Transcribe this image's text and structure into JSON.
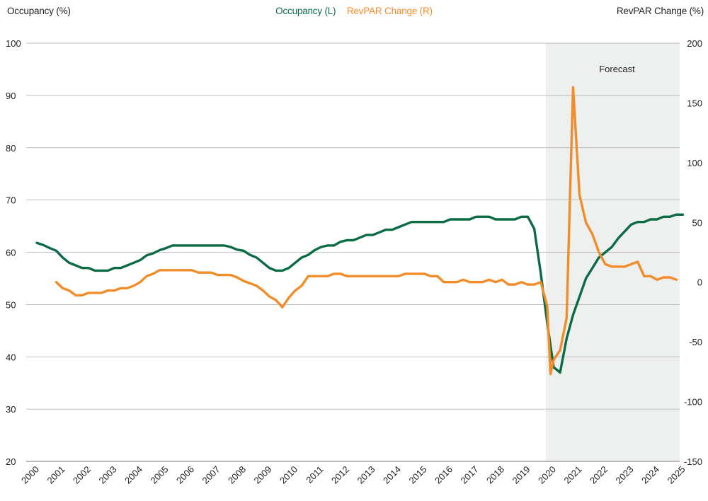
{
  "colors": {
    "occupancy": "#0b6b45",
    "revpar": "#f28c28",
    "forecast_band": "#eef0f0",
    "grid": "#aaaaaa"
  },
  "chart_data": {
    "type": "line",
    "left_axis_label": "Occupancy (%)",
    "right_axis_label": "RevPAR Change (%)",
    "legend": [
      "Occupancy (L)",
      "RevPAR Change (R)"
    ],
    "legend_position": "top-center",
    "annotation": "Forecast",
    "forecast_range": [
      2019.67,
      2025.25
    ],
    "x_ticks": [
      "2000",
      "2001",
      "2002",
      "2003",
      "2004",
      "2005",
      "2006",
      "2007",
      "2008",
      "2009",
      "2010",
      "2011",
      "2012",
      "2013",
      "2014",
      "2015",
      "2016",
      "2017",
      "2018",
      "2019",
      "2020",
      "2021",
      "2022",
      "2023",
      "2024",
      "2025"
    ],
    "left_ylim": [
      20,
      100
    ],
    "left_yticks": [
      "20",
      "30",
      "40",
      "50",
      "60",
      "70",
      "80",
      "90",
      "100"
    ],
    "right_ylim": [
      -150,
      200
    ],
    "right_yticks": [
      "-150",
      "-100",
      "-50",
      "0",
      "50",
      "100",
      "150",
      "200"
    ],
    "grid": true,
    "series": [
      {
        "name": "Occupancy (L)",
        "axis": "left",
        "points": [
          [
            2000.0,
            61.8
          ],
          [
            2000.25,
            61.4
          ],
          [
            2000.5,
            60.8
          ],
          [
            2000.75,
            60.3
          ],
          [
            2001.0,
            59.0
          ],
          [
            2001.25,
            58.0
          ],
          [
            2001.5,
            57.5
          ],
          [
            2001.75,
            57.0
          ],
          [
            2002.0,
            57.0
          ],
          [
            2002.25,
            56.5
          ],
          [
            2002.5,
            56.5
          ],
          [
            2002.75,
            56.5
          ],
          [
            2003.0,
            57.0
          ],
          [
            2003.25,
            57.0
          ],
          [
            2003.5,
            57.5
          ],
          [
            2003.75,
            58.0
          ],
          [
            2004.0,
            58.5
          ],
          [
            2004.25,
            59.4
          ],
          [
            2004.5,
            59.8
          ],
          [
            2004.75,
            60.4
          ],
          [
            2005.0,
            60.8
          ],
          [
            2005.25,
            61.3
          ],
          [
            2005.5,
            61.3
          ],
          [
            2005.75,
            61.3
          ],
          [
            2006.0,
            61.3
          ],
          [
            2006.25,
            61.3
          ],
          [
            2006.5,
            61.3
          ],
          [
            2006.75,
            61.3
          ],
          [
            2007.0,
            61.3
          ],
          [
            2007.25,
            61.3
          ],
          [
            2007.5,
            61.0
          ],
          [
            2007.75,
            60.5
          ],
          [
            2008.0,
            60.3
          ],
          [
            2008.25,
            59.5
          ],
          [
            2008.5,
            59.0
          ],
          [
            2008.75,
            58.0
          ],
          [
            2009.0,
            57.0
          ],
          [
            2009.25,
            56.5
          ],
          [
            2009.5,
            56.5
          ],
          [
            2009.75,
            57.0
          ],
          [
            2010.0,
            58.0
          ],
          [
            2010.25,
            59.0
          ],
          [
            2010.5,
            59.5
          ],
          [
            2010.75,
            60.4
          ],
          [
            2011.0,
            61.0
          ],
          [
            2011.25,
            61.3
          ],
          [
            2011.5,
            61.3
          ],
          [
            2011.75,
            62.0
          ],
          [
            2012.0,
            62.3
          ],
          [
            2012.25,
            62.3
          ],
          [
            2012.5,
            62.8
          ],
          [
            2012.75,
            63.3
          ],
          [
            2013.0,
            63.3
          ],
          [
            2013.25,
            63.8
          ],
          [
            2013.5,
            64.3
          ],
          [
            2013.75,
            64.3
          ],
          [
            2014.0,
            64.8
          ],
          [
            2014.25,
            65.3
          ],
          [
            2014.5,
            65.8
          ],
          [
            2014.75,
            65.8
          ],
          [
            2015.0,
            65.8
          ],
          [
            2015.25,
            65.8
          ],
          [
            2015.5,
            65.8
          ],
          [
            2015.75,
            65.8
          ],
          [
            2016.0,
            66.3
          ],
          [
            2016.25,
            66.3
          ],
          [
            2016.5,
            66.3
          ],
          [
            2016.75,
            66.3
          ],
          [
            2017.0,
            66.8
          ],
          [
            2017.25,
            66.8
          ],
          [
            2017.5,
            66.8
          ],
          [
            2017.75,
            66.3
          ],
          [
            2018.0,
            66.3
          ],
          [
            2018.25,
            66.3
          ],
          [
            2018.5,
            66.3
          ],
          [
            2018.75,
            66.8
          ],
          [
            2019.0,
            66.8
          ],
          [
            2019.25,
            64.5
          ],
          [
            2019.5,
            56.0
          ],
          [
            2019.75,
            46.5
          ],
          [
            2020.0,
            38.0
          ],
          [
            2020.25,
            37.0
          ],
          [
            2020.5,
            43.5
          ],
          [
            2020.75,
            48.0
          ],
          [
            2021.0,
            51.5
          ],
          [
            2021.25,
            55.0
          ],
          [
            2021.5,
            57.0
          ],
          [
            2021.75,
            59.0
          ],
          [
            2022.0,
            60.0
          ],
          [
            2022.25,
            61.0
          ],
          [
            2022.5,
            62.7
          ],
          [
            2022.75,
            64.0
          ],
          [
            2023.0,
            65.3
          ],
          [
            2023.25,
            65.8
          ],
          [
            2023.5,
            65.8
          ],
          [
            2023.75,
            66.3
          ],
          [
            2024.0,
            66.3
          ],
          [
            2024.25,
            66.8
          ],
          [
            2024.5,
            66.8
          ],
          [
            2024.75,
            67.2
          ],
          [
            2025.0,
            67.2
          ]
        ]
      },
      {
        "name": "RevPAR Change (R)",
        "axis": "right",
        "points": [
          [
            2000.75,
            0
          ],
          [
            2001.0,
            -5
          ],
          [
            2001.25,
            -7
          ],
          [
            2001.5,
            -11
          ],
          [
            2001.75,
            -11
          ],
          [
            2002.0,
            -9
          ],
          [
            2002.25,
            -9
          ],
          [
            2002.5,
            -9
          ],
          [
            2002.75,
            -7
          ],
          [
            2003.0,
            -7
          ],
          [
            2003.25,
            -5
          ],
          [
            2003.5,
            -5
          ],
          [
            2003.75,
            -3
          ],
          [
            2004.0,
            0
          ],
          [
            2004.25,
            5
          ],
          [
            2004.5,
            7
          ],
          [
            2004.75,
            10
          ],
          [
            2005.0,
            10
          ],
          [
            2005.25,
            10
          ],
          [
            2005.5,
            10
          ],
          [
            2005.75,
            10
          ],
          [
            2006.0,
            10
          ],
          [
            2006.25,
            8
          ],
          [
            2006.5,
            8
          ],
          [
            2006.75,
            8
          ],
          [
            2007.0,
            6
          ],
          [
            2007.25,
            6
          ],
          [
            2007.5,
            6
          ],
          [
            2007.75,
            4
          ],
          [
            2008.0,
            1
          ],
          [
            2008.25,
            -1
          ],
          [
            2008.5,
            -3
          ],
          [
            2008.75,
            -7
          ],
          [
            2009.0,
            -12
          ],
          [
            2009.25,
            -15
          ],
          [
            2009.5,
            -21
          ],
          [
            2009.75,
            -13
          ],
          [
            2010.0,
            -7
          ],
          [
            2010.25,
            -3
          ],
          [
            2010.5,
            5
          ],
          [
            2010.75,
            5
          ],
          [
            2011.0,
            5
          ],
          [
            2011.25,
            5
          ],
          [
            2011.5,
            7
          ],
          [
            2011.75,
            7
          ],
          [
            2012.0,
            5
          ],
          [
            2012.25,
            5
          ],
          [
            2012.5,
            5
          ],
          [
            2012.75,
            5
          ],
          [
            2013.0,
            5
          ],
          [
            2013.25,
            5
          ],
          [
            2013.5,
            5
          ],
          [
            2013.75,
            5
          ],
          [
            2014.0,
            5
          ],
          [
            2014.25,
            7
          ],
          [
            2014.5,
            7
          ],
          [
            2014.75,
            7
          ],
          [
            2015.0,
            7
          ],
          [
            2015.25,
            5
          ],
          [
            2015.5,
            5
          ],
          [
            2015.75,
            0
          ],
          [
            2016.0,
            0
          ],
          [
            2016.25,
            0
          ],
          [
            2016.5,
            2
          ],
          [
            2016.75,
            0
          ],
          [
            2017.0,
            0
          ],
          [
            2017.25,
            0
          ],
          [
            2017.5,
            2
          ],
          [
            2017.75,
            0
          ],
          [
            2018.0,
            2
          ],
          [
            2018.25,
            -2
          ],
          [
            2018.5,
            -2
          ],
          [
            2018.75,
            0
          ],
          [
            2019.0,
            -2
          ],
          [
            2019.25,
            -2
          ],
          [
            2019.5,
            0
          ],
          [
            2019.75,
            -20
          ],
          [
            2019.88,
            -77
          ],
          [
            2020.0,
            -65
          ],
          [
            2020.25,
            -57
          ],
          [
            2020.5,
            -30
          ],
          [
            2020.75,
            163
          ],
          [
            2021.0,
            73
          ],
          [
            2021.25,
            50
          ],
          [
            2021.5,
            40
          ],
          [
            2021.75,
            25
          ],
          [
            2022.0,
            15
          ],
          [
            2022.25,
            13
          ],
          [
            2022.5,
            13
          ],
          [
            2022.75,
            13
          ],
          [
            2023.0,
            15
          ],
          [
            2023.25,
            17
          ],
          [
            2023.5,
            5
          ],
          [
            2023.75,
            5
          ],
          [
            2024.0,
            2
          ],
          [
            2024.25,
            4
          ],
          [
            2024.5,
            4
          ],
          [
            2024.75,
            2
          ]
        ]
      }
    ]
  }
}
